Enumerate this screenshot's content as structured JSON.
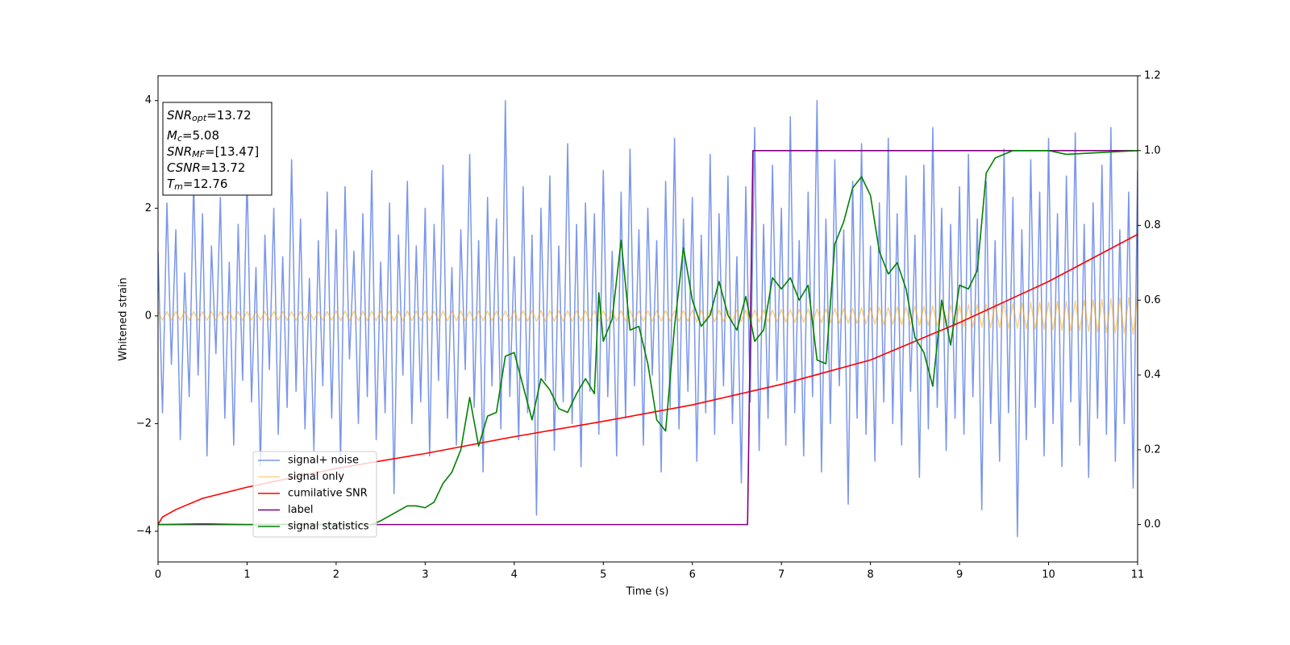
{
  "chart_data": {
    "type": "line",
    "xlabel": "Time (s)",
    "ylabel": "Whitened strain",
    "xlim": [
      0,
      11
    ],
    "xticks": [
      0,
      1,
      2,
      3,
      4,
      5,
      6,
      7,
      8,
      9,
      10,
      11
    ],
    "ylim": [
      -4.57,
      4.46
    ],
    "yticks": [
      {
        "value": -4,
        "label": "−4"
      },
      {
        "value": -2,
        "label": "−2"
      },
      0,
      2,
      4
    ],
    "y2lim": [
      -0.1,
      1.2
    ],
    "y2ticks": [
      {
        "value": 0,
        "label": "0.0"
      },
      0.2,
      0.4,
      0.6,
      0.8,
      {
        "value": 1,
        "label": "1.0"
      },
      1.2
    ],
    "annotations": [
      {
        "base": "SNR",
        "sub": "opt",
        "rest": "=13.72"
      },
      {
        "base": "M",
        "sub": "c",
        "rest": "=5.08"
      },
      {
        "base": "SNR",
        "sub": "MF",
        "rest": "=[13.47]"
      },
      {
        "base": "CSNR",
        "sub": null,
        "rest": "=13.72"
      },
      {
        "base": "T",
        "sub": "m",
        "rest": "=12.76"
      }
    ],
    "x": [
      0,
      0.05,
      0.1,
      0.15,
      0.2,
      0.25,
      0.3,
      0.35,
      0.4,
      0.45,
      0.5,
      0.55,
      0.6,
      0.65,
      0.7,
      0.75,
      0.8,
      0.85,
      0.9,
      0.95,
      1,
      1.05,
      1.1,
      1.15,
      1.2,
      1.25,
      1.3,
      1.35,
      1.4,
      1.45,
      1.5,
      1.55,
      1.6,
      1.65,
      1.7,
      1.75,
      1.8,
      1.85,
      1.9,
      1.95,
      2,
      2.05,
      2.1,
      2.15,
      2.2,
      2.25,
      2.3,
      2.35,
      2.4,
      2.45,
      2.5,
      2.55,
      2.6,
      2.65,
      2.7,
      2.75,
      2.8,
      2.85,
      2.9,
      2.95,
      3,
      3.05,
      3.1,
      3.15,
      3.2,
      3.25,
      3.3,
      3.35,
      3.4,
      3.45,
      3.5,
      3.55,
      3.6,
      3.65,
      3.7,
      3.75,
      3.8,
      3.85,
      3.9,
      3.95,
      4,
      4.05,
      4.1,
      4.15,
      4.2,
      4.25,
      4.3,
      4.35,
      4.4,
      4.45,
      4.5,
      4.55,
      4.6,
      4.65,
      4.7,
      4.75,
      4.8,
      4.85,
      4.9,
      4.95,
      5,
      5.05,
      5.1,
      5.15,
      5.2,
      5.25,
      5.3,
      5.35,
      5.4,
      5.45,
      5.5,
      5.55,
      5.6,
      5.65,
      5.7,
      5.75,
      5.8,
      5.85,
      5.9,
      5.95,
      6,
      6.05,
      6.1,
      6.15,
      6.2,
      6.25,
      6.3,
      6.35,
      6.4,
      6.45,
      6.5,
      6.55,
      6.6,
      6.65,
      6.7,
      6.75,
      6.8,
      6.85,
      6.9,
      6.95,
      7,
      7.05,
      7.1,
      7.15,
      7.2,
      7.25,
      7.3,
      7.35,
      7.4,
      7.45,
      7.5,
      7.55,
      7.6,
      7.65,
      7.7,
      7.75,
      7.8,
      7.85,
      7.9,
      7.95,
      8,
      8.05,
      8.1,
      8.15,
      8.2,
      8.25,
      8.3,
      8.35,
      8.4,
      8.45,
      8.5,
      8.55,
      8.6,
      8.65,
      8.7,
      8.75,
      8.8,
      8.85,
      8.9,
      8.95,
      9,
      9.05,
      9.1,
      9.15,
      9.2,
      9.25,
      9.3,
      9.35,
      9.4,
      9.45,
      9.5,
      9.55,
      9.6,
      9.65,
      9.7,
      9.75,
      9.8,
      9.85,
      9.9,
      9.95,
      10,
      10.05,
      10.1,
      10.15,
      10.2,
      10.25,
      10.3,
      10.35,
      10.4,
      10.45,
      10.5,
      10.55,
      10.6,
      10.65,
      10.7,
      10.75,
      10.8,
      10.85,
      10.9,
      10.95,
      11
    ],
    "series": [
      {
        "name": "signal+ noise",
        "color": "#4169e1",
        "alpha": 0.7,
        "values": [
          1.2,
          -1.8,
          2.1,
          -0.9,
          1.6,
          -2.3,
          0.8,
          -1.5,
          2.5,
          -1.1,
          1.9,
          -2.6,
          1.3,
          -0.7,
          2.2,
          -1.9,
          1.0,
          -2.4,
          1.7,
          -1.2,
          2.6,
          -1.6,
          0.9,
          -2.8,
          1.5,
          -1.0,
          2.0,
          -2.2,
          1.1,
          -1.7,
          2.9,
          -1.4,
          1.8,
          -2.1,
          0.7,
          -2.5,
          1.4,
          -1.3,
          2.3,
          -1.9,
          1.6,
          -2.7,
          2.4,
          -0.8,
          1.2,
          -2.0,
          1.9,
          -1.5,
          2.7,
          -2.3,
          1.0,
          -1.8,
          2.1,
          -3.3,
          1.5,
          -1.1,
          2.5,
          -2.0,
          1.3,
          -1.6,
          2.0,
          -2.6,
          1.7,
          -1.2,
          2.8,
          -1.9,
          0.9,
          -2.4,
          1.6,
          -1.0,
          3.0,
          -1.7,
          1.4,
          -2.9,
          2.2,
          -1.3,
          1.8,
          -2.1,
          4.0,
          -1.5,
          1.1,
          -2.3,
          2.4,
          -1.8,
          1.5,
          -3.7,
          2.0,
          -1.2,
          2.6,
          -2.5,
          1.3,
          -1.6,
          3.2,
          -2.0,
          1.7,
          -2.8,
          2.1,
          -1.4,
          1.9,
          -2.2,
          2.7,
          -1.5,
          1.2,
          -2.6,
          2.3,
          -1.9,
          3.1,
          -1.3,
          1.6,
          -2.4,
          2.0,
          -1.1,
          1.4,
          -2.9,
          2.5,
          -1.7,
          3.3,
          -2.1,
          1.8,
          -1.4,
          2.2,
          -2.7,
          1.5,
          -1.8,
          3.0,
          -2.2,
          1.9,
          -1.3,
          2.6,
          -2.0,
          1.1,
          -3.1,
          2.4,
          -1.6,
          3.5,
          -2.5,
          1.7,
          -1.9,
          2.8,
          -1.2,
          2.0,
          -2.4,
          3.7,
          -1.8,
          1.4,
          -2.6,
          2.3,
          -1.5,
          4.0,
          -2.9,
          1.8,
          -2.0,
          2.9,
          -1.3,
          1.6,
          -3.5,
          2.5,
          -1.9,
          3.2,
          -2.2,
          1.3,
          -2.7,
          2.1,
          -1.6,
          3.3,
          -2.0,
          1.9,
          -2.4,
          2.6,
          -1.4,
          1.5,
          -3.0,
          2.8,
          -2.1,
          3.5,
          -1.7,
          2.0,
          -2.5,
          1.7,
          -1.9,
          2.4,
          -2.2,
          3.0,
          -1.5,
          1.8,
          -3.6,
          2.5,
          -2.0,
          1.4,
          -2.7,
          3.1,
          -1.8,
          2.2,
          -4.1,
          1.6,
          -2.3,
          2.9,
          -1.7,
          2.3,
          -2.6,
          3.3,
          -2.0,
          1.9,
          -2.8,
          2.6,
          -1.6,
          3.4,
          -2.4,
          1.7,
          -3.0,
          2.1,
          -1.9,
          2.8,
          -2.2,
          3.5,
          -2.7,
          1.6,
          -2.0,
          2.3,
          -3.2,
          2.7
        ]
      },
      {
        "name": "signal only",
        "color": "#ffa500",
        "alpha": 0.5,
        "values": [
          0.08,
          -0.08,
          0.08,
          -0.08,
          0.08,
          -0.08,
          0.08,
          -0.08,
          0.08,
          -0.08,
          0.08,
          -0.08,
          0.08,
          -0.08,
          0.08,
          -0.08,
          0.08,
          -0.08,
          0.08,
          -0.08,
          0.08,
          -0.08,
          0.08,
          -0.08,
          0.08,
          -0.08,
          0.08,
          -0.08,
          0.08,
          -0.08,
          0.08,
          -0.08,
          0.08,
          -0.08,
          0.08,
          -0.08,
          0.08,
          -0.08,
          0.08,
          -0.08,
          0.09,
          -0.09,
          0.09,
          -0.09,
          0.09,
          -0.09,
          0.09,
          -0.09,
          0.09,
          -0.09,
          0.09,
          -0.09,
          0.09,
          -0.09,
          0.09,
          -0.09,
          0.09,
          -0.09,
          0.09,
          -0.09,
          0.09,
          -0.09,
          0.09,
          -0.09,
          0.09,
          -0.09,
          0.09,
          -0.09,
          0.09,
          -0.09,
          0.09,
          -0.09,
          0.09,
          -0.09,
          0.09,
          -0.09,
          0.09,
          -0.09,
          0.09,
          -0.09,
          0.1,
          -0.1,
          0.1,
          -0.1,
          0.1,
          -0.1,
          0.1,
          -0.1,
          0.1,
          -0.1,
          0.1,
          -0.1,
          0.1,
          -0.1,
          0.1,
          -0.1,
          0.1,
          -0.1,
          0.1,
          -0.1,
          0.1,
          -0.1,
          0.1,
          -0.1,
          0.1,
          -0.1,
          0.1,
          -0.1,
          0.1,
          -0.1,
          0.1,
          -0.1,
          0.1,
          -0.1,
          0.1,
          -0.1,
          0.1,
          -0.1,
          0.1,
          -0.1,
          0.11,
          -0.11,
          0.11,
          -0.11,
          0.11,
          -0.11,
          0.11,
          -0.11,
          0.11,
          -0.11,
          0.11,
          -0.11,
          0.11,
          -0.11,
          0.11,
          -0.11,
          0.11,
          -0.11,
          0.11,
          -0.11,
          0.12,
          -0.12,
          0.12,
          -0.12,
          0.12,
          -0.12,
          0.13,
          -0.13,
          0.13,
          -0.13,
          0.13,
          -0.13,
          0.14,
          -0.14,
          0.14,
          -0.14,
          0.14,
          -0.14,
          0.15,
          -0.15,
          0.15,
          -0.15,
          0.16,
          -0.16,
          0.16,
          -0.16,
          0.17,
          -0.17,
          0.17,
          -0.17,
          0.18,
          -0.18,
          0.18,
          -0.18,
          0.19,
          -0.19,
          0.19,
          -0.19,
          0.2,
          -0.2,
          0.2,
          -0.2,
          0.21,
          -0.21,
          0.21,
          -0.21,
          0.22,
          -0.22,
          0.22,
          -0.22,
          0.23,
          -0.23,
          0.23,
          -0.23,
          0.24,
          -0.24,
          0.25,
          -0.25,
          0.25,
          -0.25,
          0.26,
          -0.26,
          0.27,
          -0.27,
          0.27,
          -0.27,
          0.28,
          -0.28,
          0.29,
          -0.29,
          0.3,
          -0.3,
          0.31,
          -0.31,
          0.32,
          -0.32,
          0.33,
          -0.33,
          0.34,
          -0.34,
          0.35
        ]
      },
      {
        "name": "cumilative SNR",
        "color": "#ff0000",
        "axis": "y2",
        "x": [
          0,
          0.05,
          0.2,
          0.5,
          1,
          2,
          3,
          4,
          5,
          6,
          7,
          8,
          9,
          10,
          11
        ],
        "values": [
          0.0,
          0.02,
          0.04,
          0.07,
          0.1,
          0.15,
          0.19,
          0.235,
          0.276,
          0.32,
          0.375,
          0.44,
          0.54,
          0.65,
          0.776
        ]
      },
      {
        "name": "label",
        "color": "#800080",
        "axis": "y2",
        "x": [
          0,
          6.62,
          6.68,
          11
        ],
        "values": [
          0,
          0,
          1,
          1
        ]
      },
      {
        "name": "signal statistics",
        "color": "#008000",
        "axis": "y2",
        "x": [
          0,
          0.5,
          1,
          1.5,
          2,
          2.4,
          2.5,
          2.8,
          2.9,
          3.0,
          3.1,
          3.2,
          3.3,
          3.4,
          3.5,
          3.6,
          3.7,
          3.8,
          3.9,
          4.0,
          4.1,
          4.2,
          4.3,
          4.4,
          4.5,
          4.6,
          4.7,
          4.8,
          4.9,
          4.95,
          5.0,
          5.1,
          5.2,
          5.3,
          5.4,
          5.5,
          5.6,
          5.7,
          5.8,
          5.9,
          6.0,
          6.1,
          6.2,
          6.3,
          6.4,
          6.5,
          6.6,
          6.7,
          6.8,
          6.9,
          7.0,
          7.1,
          7.2,
          7.3,
          7.4,
          7.5,
          7.6,
          7.7,
          7.8,
          7.9,
          8.0,
          8.1,
          8.2,
          8.3,
          8.4,
          8.5,
          8.6,
          8.7,
          8.8,
          8.9,
          9.0,
          9.1,
          9.2,
          9.3,
          9.4,
          9.6,
          10.0,
          10.2,
          11
        ],
        "values": [
          0,
          0.002,
          0,
          0.001,
          0,
          0,
          0.01,
          0.05,
          0.05,
          0.045,
          0.06,
          0.11,
          0.14,
          0.2,
          0.34,
          0.21,
          0.29,
          0.3,
          0.45,
          0.46,
          0.37,
          0.28,
          0.39,
          0.36,
          0.31,
          0.3,
          0.35,
          0.39,
          0.35,
          0.62,
          0.49,
          0.55,
          0.76,
          0.52,
          0.53,
          0.43,
          0.28,
          0.25,
          0.53,
          0.74,
          0.6,
          0.53,
          0.56,
          0.65,
          0.56,
          0.52,
          0.61,
          0.49,
          0.52,
          0.66,
          0.63,
          0.66,
          0.6,
          0.64,
          0.44,
          0.43,
          0.75,
          0.81,
          0.9,
          0.93,
          0.88,
          0.73,
          0.67,
          0.7,
          0.63,
          0.5,
          0.46,
          0.37,
          0.6,
          0.48,
          0.64,
          0.63,
          0.68,
          0.94,
          0.98,
          1.0,
          1.0,
          0.99,
          1.0
        ]
      }
    ]
  }
}
